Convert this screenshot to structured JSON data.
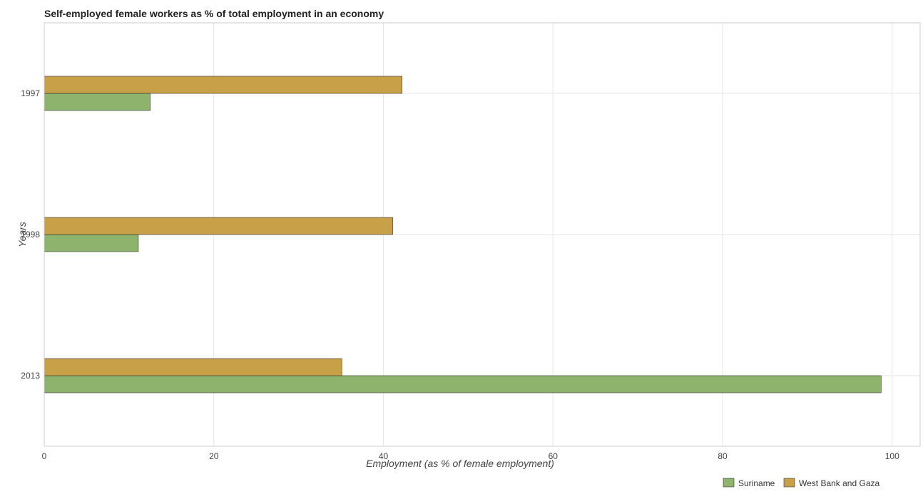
{
  "chart_data": {
    "type": "bar",
    "orientation": "horizontal",
    "title": "Self-employed female workers as % of total employment in an economy",
    "xlabel": "Employment (as % of female employment)",
    "ylabel": "Years",
    "categories": [
      "1997",
      "1998",
      "2013"
    ],
    "series": [
      {
        "name": "Suriname",
        "color": "#8db36c",
        "values": [
          12.5,
          11.1,
          98.7
        ]
      },
      {
        "name": "West Bank and Gaza",
        "color": "#c8a048",
        "values": [
          42.2,
          41.1,
          35.1
        ]
      }
    ],
    "xlim": [
      0,
      103.3
    ],
    "xticks": [
      0,
      20,
      40,
      60,
      80,
      100
    ],
    "grid": true,
    "legend_position": "bottom-right"
  }
}
